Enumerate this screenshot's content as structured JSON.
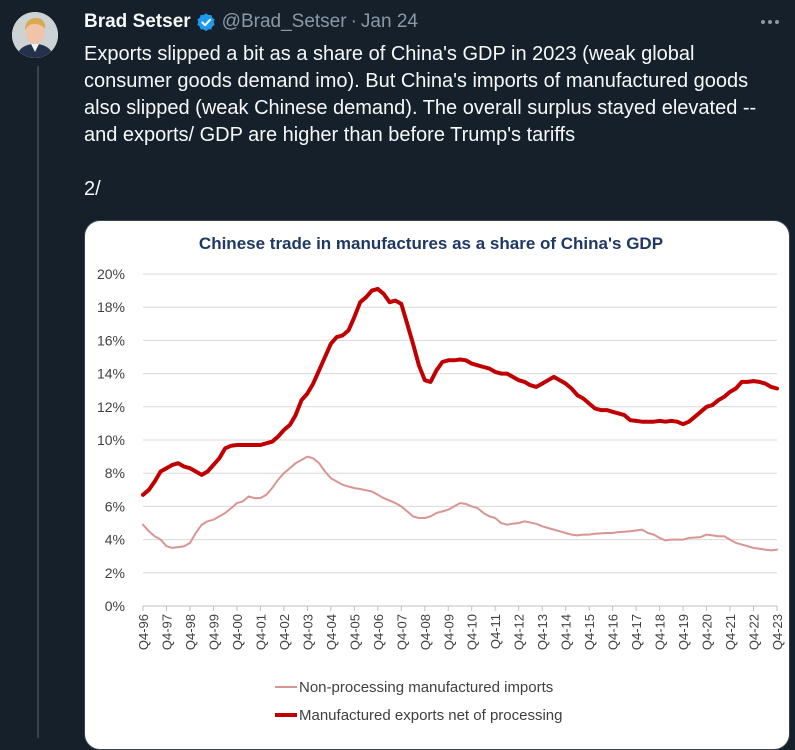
{
  "author": {
    "name": "Brad Setser",
    "handle": "@Brad_Setser",
    "date": "Jan 24",
    "verified_color": "#1d9bf0"
  },
  "tweet": {
    "paragraph1": "Exports slipped a bit as a share of China's GDP in 2023 (weak global consumer goods demand imo).   But China's imports of manufactured goods also slipped (weak Chinese demand).   The overall surplus stayed elevated -- and exports/ GDP are higher than before Trump's tariffs",
    "paragraph2": "2/"
  },
  "icons": {
    "more": "more-dots-icon",
    "verified": "verified-badge-icon"
  },
  "chart_data": {
    "type": "line",
    "title": "Chinese trade in manufactures as a share of  China's GDP",
    "ylim": [
      0,
      20
    ],
    "y_ticks": [
      "0%",
      "2%",
      "4%",
      "6%",
      "8%",
      "10%",
      "12%",
      "14%",
      "16%",
      "18%",
      "20%"
    ],
    "x_ticks": [
      "Q4-96",
      "Q4-97",
      "Q4-98",
      "Q4-99",
      "Q4-00",
      "Q4-01",
      "Q4-02",
      "Q4-03",
      "Q4-04",
      "Q4-05",
      "Q4-06",
      "Q4-07",
      "Q4-08",
      "Q4-09",
      "Q4-10",
      "Q4-11",
      "Q4-12",
      "Q4-13",
      "Q4-14",
      "Q4-15",
      "Q4-16",
      "Q4-17",
      "Q4-18",
      "Q4-19",
      "Q4-20",
      "Q4-21",
      "Q4-22",
      "Q4-23"
    ],
    "grid": true,
    "legend_position": "bottom",
    "series": [
      {
        "name": "Non-processing manufactured imports",
        "color": "#d99594",
        "x": [
          1996.75,
          1997.0,
          1997.25,
          1997.5,
          1997.75,
          1998.0,
          1998.5,
          1998.75,
          1999.0,
          1999.25,
          1999.5,
          1999.75,
          2000.0,
          2000.25,
          2000.5,
          2000.75,
          2001.0,
          2001.25,
          2001.5,
          2001.75,
          2002.0,
          2002.25,
          2002.5,
          2002.75,
          2003.0,
          2003.25,
          2003.5,
          2003.75,
          2004.0,
          2004.25,
          2004.5,
          2004.75,
          2005.0,
          2005.25,
          2005.5,
          2005.75,
          2006.0,
          2006.5,
          2006.75,
          2007.0,
          2007.5,
          2007.75,
          2008.0,
          2008.25,
          2008.5,
          2008.75,
          2009.0,
          2009.25,
          2009.5,
          2009.75,
          2010.0,
          2010.25,
          2010.5,
          2010.75,
          2011.0,
          2011.25,
          2011.5,
          2011.75,
          2012.0,
          2012.25,
          2012.5,
          2012.75,
          2013.0,
          2013.5,
          2013.75,
          2014.0,
          2014.25,
          2014.5,
          2014.75,
          2015.0,
          2015.25,
          2015.5,
          2015.75,
          2016.0,
          2016.5,
          2016.75,
          2017.0,
          2017.5,
          2017.75,
          2018.0,
          2018.25,
          2018.5,
          2018.75,
          2019.0,
          2019.25,
          2019.5,
          2019.75,
          2020.0,
          2020.5,
          2020.75,
          2021.0,
          2021.25,
          2021.5,
          2021.75,
          2022.0,
          2022.25,
          2022.5,
          2022.75,
          2023.0,
          2023.25,
          2023.5,
          2023.75
        ],
        "values": [
          4.9,
          4.5,
          4.2,
          4.0,
          3.6,
          3.5,
          3.6,
          3.8,
          4.4,
          4.9,
          5.1,
          5.2,
          5.4,
          5.6,
          5.9,
          6.2,
          6.3,
          6.6,
          6.5,
          6.5,
          6.7,
          7.1,
          7.6,
          8.0,
          8.3,
          8.6,
          8.8,
          9.0,
          8.9,
          8.6,
          8.1,
          7.7,
          7.5,
          7.3,
          7.2,
          7.1,
          7.05,
          6.9,
          6.7,
          6.5,
          6.2,
          6.0,
          5.7,
          5.4,
          5.3,
          5.3,
          5.4,
          5.6,
          5.7,
          5.8,
          6.0,
          6.2,
          6.15,
          6.0,
          5.9,
          5.6,
          5.4,
          5.3,
          5.0,
          4.9,
          4.95,
          5.0,
          5.1,
          4.95,
          4.8,
          4.7,
          4.6,
          4.5,
          4.4,
          4.3,
          4.25,
          4.3,
          4.3,
          4.35,
          4.4,
          4.4,
          4.45,
          4.5,
          4.55,
          4.6,
          4.4,
          4.3,
          4.1,
          3.95,
          4.0,
          4.0,
          4.0,
          4.1,
          4.15,
          4.3,
          4.25,
          4.2,
          4.2,
          4.0,
          3.8,
          3.7,
          3.6,
          3.5,
          3.45,
          3.4,
          3.35,
          3.4
        ]
      },
      {
        "name": "Manufactured exports net of processing",
        "color": "#c00000",
        "x": [
          1996.75,
          1997.0,
          1997.25,
          1997.5,
          1997.75,
          1998.0,
          1998.25,
          1998.5,
          1998.75,
          1999.0,
          1999.25,
          1999.5,
          1999.75,
          2000.0,
          2000.25,
          2000.5,
          2000.75,
          2001.0,
          2001.25,
          2001.5,
          2001.75,
          2002.0,
          2002.25,
          2002.5,
          2002.75,
          2003.0,
          2003.25,
          2003.5,
          2003.75,
          2004.0,
          2004.25,
          2004.5,
          2004.75,
          2005.0,
          2005.25,
          2005.5,
          2005.75,
          2006.0,
          2006.25,
          2006.5,
          2006.75,
          2007.0,
          2007.25,
          2007.5,
          2007.75,
          2008.0,
          2008.25,
          2008.5,
          2008.75,
          2009.0,
          2009.25,
          2009.5,
          2009.75,
          2010.0,
          2010.25,
          2010.5,
          2010.75,
          2011.0,
          2011.25,
          2011.5,
          2011.75,
          2012.0,
          2012.25,
          2012.5,
          2012.75,
          2013.0,
          2013.25,
          2013.5,
          2013.75,
          2014.0,
          2014.25,
          2014.5,
          2014.75,
          2015.0,
          2015.25,
          2015.5,
          2015.75,
          2016.0,
          2016.25,
          2016.5,
          2016.75,
          2017.0,
          2017.25,
          2017.5,
          2017.75,
          2018.0,
          2018.25,
          2018.5,
          2018.75,
          2019.0,
          2019.25,
          2019.5,
          2019.75,
          2020.0,
          2020.25,
          2020.5,
          2020.75,
          2021.0,
          2021.25,
          2021.5,
          2021.75,
          2022.0,
          2022.25,
          2022.5,
          2022.75,
          2023.0,
          2023.25,
          2023.5,
          2023.75
        ],
        "values": [
          6.7,
          7.0,
          7.5,
          8.1,
          8.3,
          8.5,
          8.6,
          8.4,
          8.3,
          8.1,
          7.9,
          8.1,
          8.5,
          8.9,
          9.5,
          9.65,
          9.7,
          9.7,
          9.7,
          9.7,
          9.7,
          9.8,
          9.9,
          10.2,
          10.6,
          10.9,
          11.5,
          12.4,
          12.8,
          13.4,
          14.2,
          15.0,
          15.8,
          16.2,
          16.3,
          16.6,
          17.4,
          18.3,
          18.6,
          19.0,
          19.1,
          18.8,
          18.3,
          18.4,
          18.2,
          17.0,
          15.8,
          14.5,
          13.6,
          13.5,
          14.2,
          14.7,
          14.8,
          14.8,
          14.85,
          14.8,
          14.6,
          14.5,
          14.4,
          14.3,
          14.1,
          14.0,
          14.0,
          13.8,
          13.6,
          13.5,
          13.3,
          13.2,
          13.4,
          13.6,
          13.8,
          13.6,
          13.4,
          13.1,
          12.7,
          12.5,
          12.2,
          11.9,
          11.8,
          11.8,
          11.7,
          11.6,
          11.5,
          11.2,
          11.15,
          11.1,
          11.1,
          11.1,
          11.15,
          11.1,
          11.15,
          11.1,
          10.95,
          11.1,
          11.4,
          11.7,
          12.0,
          12.1,
          12.4,
          12.6,
          12.9,
          13.1,
          13.5,
          13.5,
          13.55,
          13.5,
          13.4,
          13.2,
          13.1
        ]
      }
    ]
  }
}
